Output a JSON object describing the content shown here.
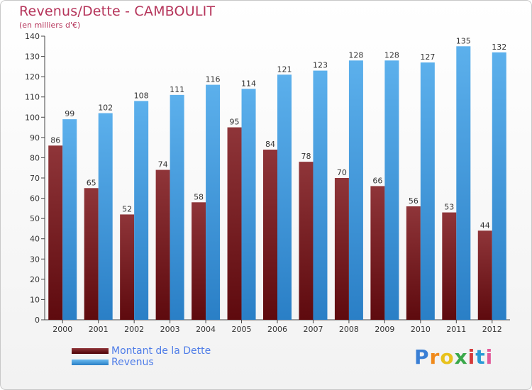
{
  "title": "Revenus/Dette - CAMBOULIT",
  "subtitle": "(en milliers d'€)",
  "colors": {
    "debt": "#8b2b31",
    "revenue": "#4aa3e6",
    "title": "#b5345a",
    "legend_text": "#4f7de8"
  },
  "chart_data": {
    "type": "bar",
    "categories": [
      "2000",
      "2001",
      "2002",
      "2003",
      "2004",
      "2005",
      "2006",
      "2007",
      "2008",
      "2009",
      "2010",
      "2011",
      "2012"
    ],
    "series": [
      {
        "name": "Montant de la Dette",
        "values": [
          86,
          65,
          52,
          74,
          58,
          95,
          84,
          78,
          70,
          66,
          56,
          53,
          44
        ]
      },
      {
        "name": "Revenus",
        "values": [
          99,
          102,
          108,
          111,
          116,
          114,
          121,
          123,
          128,
          128,
          127,
          135,
          132
        ]
      }
    ],
    "ylim": [
      0,
      140
    ],
    "yticks": [
      0,
      10,
      20,
      30,
      40,
      50,
      60,
      70,
      80,
      90,
      100,
      110,
      120,
      130,
      140
    ],
    "grid": false,
    "legend_position": "bottom-left"
  },
  "legend": {
    "debt_label": "Montant de la Dette",
    "revenue_label": "Revenus"
  },
  "logo": {
    "letters": [
      "P",
      "r",
      "o",
      "x",
      "i",
      "t",
      "i"
    ],
    "colors": [
      "#3a7fd5",
      "#f08a1c",
      "#e8c21c",
      "#3aa84a",
      "#d43a3a",
      "#2a9ad5",
      "#e25a9a"
    ]
  }
}
